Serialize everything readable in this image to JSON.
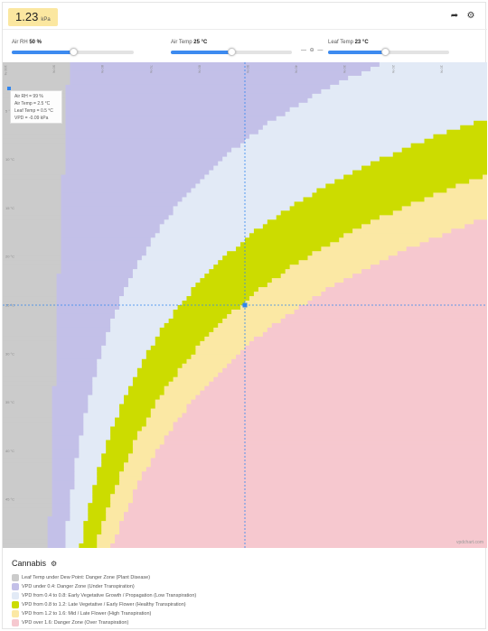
{
  "header": {
    "vpd_value": "1.23",
    "vpd_unit": "kPa",
    "share_icon": "share-icon",
    "settings_icon": "gear-icon"
  },
  "controls": {
    "air_rh": {
      "label": "Air RH",
      "value": "50 %",
      "level": 0.5
    },
    "air_temp": {
      "label": "Air Temp",
      "value": "25 °C",
      "level": 0.5
    },
    "link_toggle": "— ⊖ —",
    "leaf_temp": {
      "label": "Leaf Temp",
      "value": "23 °C",
      "level": 0.47
    }
  },
  "chart": {
    "x_ticks": [
      "100 %",
      "90 %",
      "80 %",
      "70 %",
      "60 %",
      "50 %",
      "40 %",
      "30 %",
      "20 %",
      "10 %"
    ],
    "y_ticks": [
      "5 °C",
      "10 °C",
      "15 °C",
      "20 °C",
      "25 °C",
      "30 °C",
      "35 °C",
      "40 °C",
      "45 °C"
    ],
    "tooltip": {
      "rh": "Air RH = 99 %",
      "air_temp": "Air Temp = 2.5 °C",
      "leaf_temp": "Leaf Temp = 0.5 °C",
      "vpd": "VPD = -0.09 kPa"
    },
    "watermark": "vpdchart.com",
    "colors": {
      "dew": "#cbcbcb",
      "under": "#c3c0e8",
      "low": "#e2eaf6",
      "healthy": "#ccdc00",
      "high": "#fbe8a4",
      "over": "#f6c8cf",
      "crosshair": "#2f85ef"
    }
  },
  "chart_data": {
    "type": "heatmap",
    "x_axis": "Air RH (%)",
    "y_axis": "Air Temp (°C)",
    "x_range": [
      100,
      0
    ],
    "y_range": [
      0,
      50
    ],
    "leaf_temp_offset_c": -2,
    "zones": [
      {
        "name": "Leaf Temp under Dew Point",
        "max_vpd": null
      },
      {
        "name": "VPD under 0.4",
        "range": [
          0,
          0.4
        ]
      },
      {
        "name": "VPD from 0.4 to 0.8",
        "range": [
          0.4,
          0.8
        ]
      },
      {
        "name": "VPD from 0.8 to 1.2",
        "range": [
          0.8,
          1.2
        ]
      },
      {
        "name": "VPD from 1.2 to 1.6",
        "range": [
          1.2,
          1.6
        ]
      },
      {
        "name": "VPD over 1.6",
        "range": [
          1.6,
          99
        ]
      }
    ],
    "selected": {
      "rh": 50,
      "air_temp": 25,
      "leaf_temp": 23,
      "vpd": 1.23
    }
  },
  "legend": {
    "title": "Cannabis",
    "settings_icon": "gear-icon",
    "items": [
      {
        "label": "Leaf Temp under Dew Point:",
        "desc": " Danger Zone (Plant Disease)",
        "color": "#cbcbcb"
      },
      {
        "label": "VPD under 0.4:",
        "desc": " Danger Zone (Under Transpiration)",
        "color": "#c3c0e8"
      },
      {
        "label": "VPD from 0.4 to 0.8:",
        "desc": " Early Vegetative Growth / Propagation (Low Transpiration)",
        "color": "#e2eaf6"
      },
      {
        "label": "VPD from 0.8 to 1.2:",
        "desc": " Late Vegetative / Early Flower (Healthy Transpiration)",
        "color": "#ccdc00"
      },
      {
        "label": "VPD from 1.2 to 1.6:",
        "desc": " Mid / Late Flower (High Transpiration)",
        "color": "#fbe8a4"
      },
      {
        "label": "VPD over 1.6:",
        "desc": " Danger Zone (Over Transpiration)",
        "color": "#f6c8cf"
      }
    ]
  }
}
